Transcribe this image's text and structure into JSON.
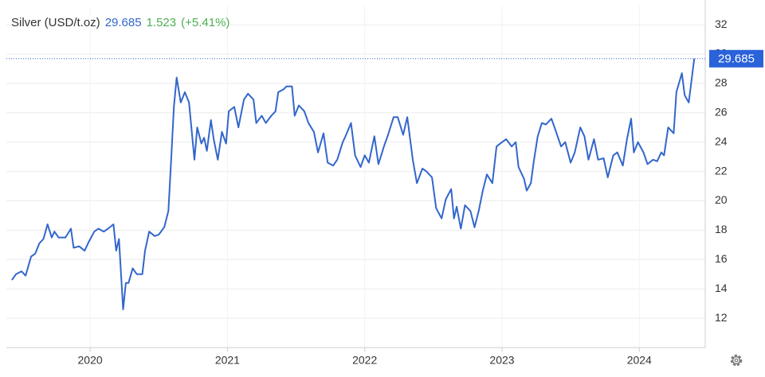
{
  "chart_data": {
    "type": "line",
    "title": "Silver (USD/t.oz)",
    "change": 1.523,
    "change_label": "(+5.41%)",
    "x": [
      2019.43,
      2019.46,
      2019.5,
      2019.53,
      2019.57,
      2019.6,
      2019.63,
      2019.66,
      2019.69,
      2019.72,
      2019.74,
      2019.77,
      2019.82,
      2019.86,
      2019.88,
      2019.92,
      2019.96,
      2019.99,
      2020.03,
      2020.06,
      2020.1,
      2020.13,
      2020.17,
      2020.19,
      2020.21,
      2020.24,
      2020.26,
      2020.28,
      2020.31,
      2020.34,
      2020.38,
      2020.4,
      2020.43,
      2020.47,
      2020.5,
      2020.54,
      2020.57,
      2020.59,
      2020.61,
      2020.63,
      2020.66,
      2020.69,
      2020.72,
      2020.76,
      2020.78,
      2020.81,
      2020.83,
      2020.85,
      2020.88,
      2020.9,
      2020.93,
      2020.96,
      2020.99,
      2021.01,
      2021.05,
      2021.08,
      2021.12,
      2021.15,
      2021.19,
      2021.21,
      2021.25,
      2021.28,
      2021.32,
      2021.35,
      2021.37,
      2021.41,
      2021.43,
      2021.47,
      2021.49,
      2021.52,
      2021.56,
      2021.59,
      2021.63,
      2021.66,
      2021.7,
      2021.73,
      2021.77,
      2021.8,
      2021.84,
      2021.86,
      2021.9,
      2021.93,
      2021.97,
      2022.0,
      2022.03,
      2022.07,
      2022.1,
      2022.14,
      2022.17,
      2022.21,
      2022.24,
      2022.28,
      2022.31,
      2022.35,
      2022.38,
      2022.42,
      2022.45,
      2022.49,
      2022.52,
      2022.56,
      2022.59,
      2022.63,
      2022.65,
      2022.67,
      2022.7,
      2022.73,
      2022.77,
      2022.8,
      2022.83,
      2022.86,
      2022.89,
      2022.93,
      2022.96,
      2023.0,
      2023.03,
      2023.07,
      2023.1,
      2023.12,
      2023.16,
      2023.18,
      2023.21,
      2023.23,
      2023.26,
      2023.29,
      2023.32,
      2023.36,
      2023.39,
      2023.43,
      2023.46,
      2023.5,
      2023.53,
      2023.57,
      2023.6,
      2023.63,
      2023.67,
      2023.7,
      2023.74,
      2023.77,
      2023.81,
      2023.84,
      2023.88,
      2023.91,
      2023.94,
      2023.96,
      2023.99,
      2024.03,
      2024.06,
      2024.1,
      2024.13,
      2024.16,
      2024.18,
      2024.21,
      2024.25,
      2024.27,
      2024.31,
      2024.33,
      2024.36,
      2024.4
    ],
    "series": [
      {
        "name": "Silver",
        "color": "#3366cc",
        "values": [
          14.6,
          15.0,
          15.2,
          14.9,
          16.2,
          16.4,
          17.1,
          17.4,
          18.4,
          17.5,
          17.9,
          17.5,
          17.5,
          18.1,
          16.8,
          16.9,
          16.6,
          17.2,
          17.9,
          18.1,
          17.9,
          18.1,
          18.4,
          16.6,
          17.4,
          12.6,
          14.4,
          14.4,
          15.4,
          15.0,
          15.0,
          16.6,
          17.9,
          17.6,
          17.7,
          18.2,
          19.3,
          22.8,
          26.4,
          28.4,
          26.7,
          27.4,
          26.7,
          22.8,
          25.0,
          23.9,
          24.3,
          23.4,
          25.5,
          24.2,
          22.8,
          24.7,
          23.9,
          26.1,
          26.4,
          25.0,
          26.9,
          27.3,
          26.9,
          25.3,
          25.8,
          25.3,
          25.8,
          26.1,
          27.4,
          27.6,
          27.8,
          27.8,
          25.8,
          26.5,
          26.1,
          25.3,
          24.7,
          23.3,
          24.6,
          22.6,
          22.4,
          22.8,
          24.0,
          24.4,
          25.3,
          23.1,
          22.3,
          23.1,
          22.6,
          24.4,
          22.5,
          23.7,
          24.5,
          25.7,
          25.7,
          24.5,
          25.7,
          22.8,
          21.2,
          22.2,
          22.0,
          21.6,
          19.5,
          18.8,
          20.1,
          20.8,
          18.8,
          19.6,
          18.1,
          19.7,
          19.3,
          18.2,
          19.3,
          20.7,
          21.8,
          21.2,
          23.7,
          24.0,
          24.2,
          23.7,
          24.0,
          22.3,
          21.5,
          20.7,
          21.2,
          22.6,
          24.4,
          25.3,
          25.2,
          25.6,
          24.8,
          23.7,
          24.0,
          22.6,
          23.3,
          25.0,
          24.4,
          22.8,
          24.2,
          22.8,
          22.9,
          21.6,
          23.1,
          23.3,
          22.4,
          24.2,
          25.6,
          23.3,
          24.0,
          23.3,
          22.5,
          22.8,
          22.7,
          23.3,
          23.1,
          25.0,
          24.6,
          27.4,
          28.7,
          27.2,
          26.7,
          29.685
        ]
      }
    ],
    "xlim": [
      2019.39,
      2024.48
    ],
    "xticks": [
      2020,
      2021,
      2022,
      2023,
      2024
    ],
    "ylim": [
      10,
      33.25
    ],
    "yticks": [
      12,
      14,
      16,
      18,
      20,
      22,
      24,
      26,
      28,
      30,
      32
    ],
    "grid": true
  }
}
